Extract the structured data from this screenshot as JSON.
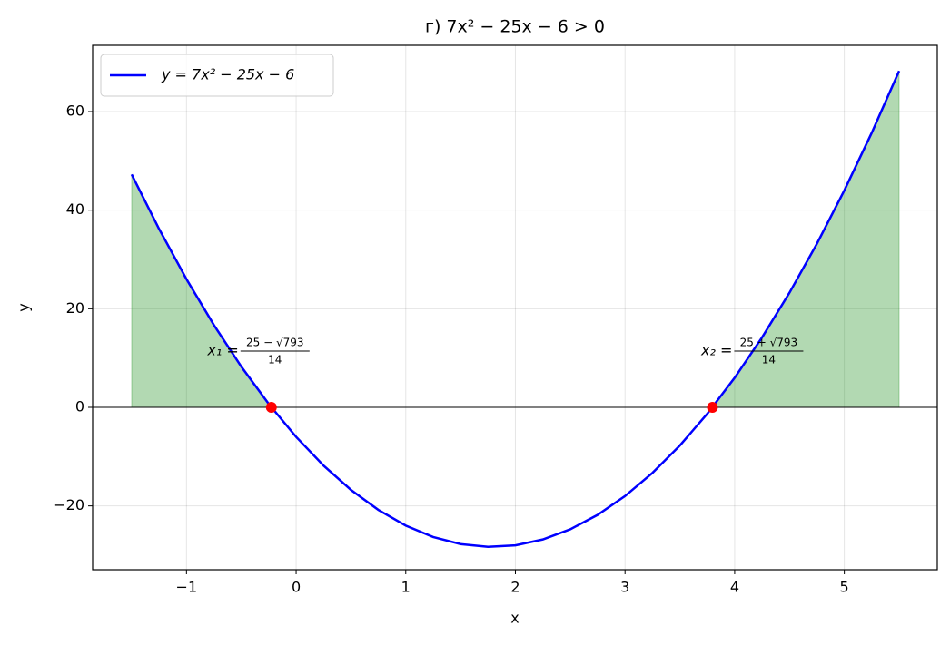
{
  "chart_data": {
    "type": "line",
    "title": "г) 7x² − 25x − 6 > 0",
    "x_label": "x",
    "y_label": "y",
    "x": [
      -1.5,
      -1.25,
      -1,
      -0.75,
      -0.5,
      -0.25,
      0,
      0.25,
      0.5,
      0.75,
      1,
      1.25,
      1.5,
      1.75,
      2,
      2.25,
      2.5,
      2.75,
      3,
      3.25,
      3.5,
      3.75,
      4,
      4.25,
      4.5,
      4.75,
      5,
      5.25,
      5.5
    ],
    "series": [
      {
        "name": "y = 7x² − 25x − 6",
        "color": "#0000ff",
        "fill_color": "#008000",
        "values": [
          47.25,
          36.1875,
          26,
          16.6875,
          8.25,
          0.6875,
          -6,
          -11.8125,
          -16.75,
          -20.8125,
          -24,
          -26.3125,
          -27.75,
          -28.3125,
          -28,
          -26.8125,
          -24.75,
          -21.8125,
          -18,
          -13.3125,
          -7.75,
          -1.3125,
          6,
          14.1875,
          23.25,
          33.1875,
          44,
          55.6875,
          68.25
        ]
      }
    ],
    "points": {
      "color": "#ff0000",
      "x": [
        -0.2257,
        3.7972
      ],
      "values": [
        0,
        0
      ]
    },
    "annotations": [
      {
        "lhs": "x₁ =",
        "numerator": "25 − √793",
        "denominator": "14"
      },
      {
        "lhs": "x₂ =",
        "numerator": "25 + √793",
        "denominator": "14"
      }
    ],
    "baseline": 0,
    "xlim": [
      -1.856,
      5.848
    ],
    "ylim": [
      -32.95,
      73.44
    ],
    "xticks": [
      {
        "value": -1,
        "label": "−1"
      },
      0,
      1,
      2,
      3,
      4,
      5
    ],
    "yticks": [
      {
        "value": -20,
        "label": "−20"
      },
      0,
      20,
      40,
      60
    ],
    "grid": true,
    "legend": "upper left"
  }
}
